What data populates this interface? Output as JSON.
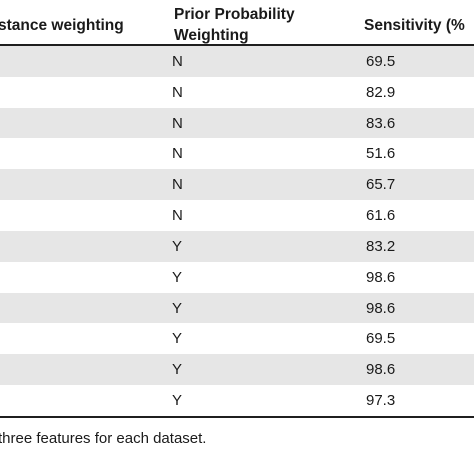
{
  "table": {
    "headers": {
      "distance_weighting": "stance weighting",
      "prior_probability_line1": "Prior Probability",
      "prior_probability_line2": "Weighting",
      "sensitivity": "Sensitivity (%"
    },
    "rows": [
      {
        "prior": "N",
        "sensitivity": "69.5"
      },
      {
        "prior": "N",
        "sensitivity": "82.9"
      },
      {
        "prior": "N",
        "sensitivity": "83.6"
      },
      {
        "prior": "N",
        "sensitivity": "51.6"
      },
      {
        "prior": "N",
        "sensitivity": "65.7"
      },
      {
        "prior": "N",
        "sensitivity": "61.6"
      },
      {
        "prior": "Y",
        "sensitivity": "83.2"
      },
      {
        "prior": "Y",
        "sensitivity": "98.6"
      },
      {
        "prior": "Y",
        "sensitivity": "98.6"
      },
      {
        "prior": "Y",
        "sensitivity": "69.5"
      },
      {
        "prior": "Y",
        "sensitivity": "98.6"
      },
      {
        "prior": "Y",
        "sensitivity": "97.3"
      }
    ]
  },
  "footnote": "three features for each dataset.",
  "colors": {
    "row_shade": "#e6e6e6",
    "rule": "#1f1f1f",
    "text": "#1a1a1a"
  }
}
